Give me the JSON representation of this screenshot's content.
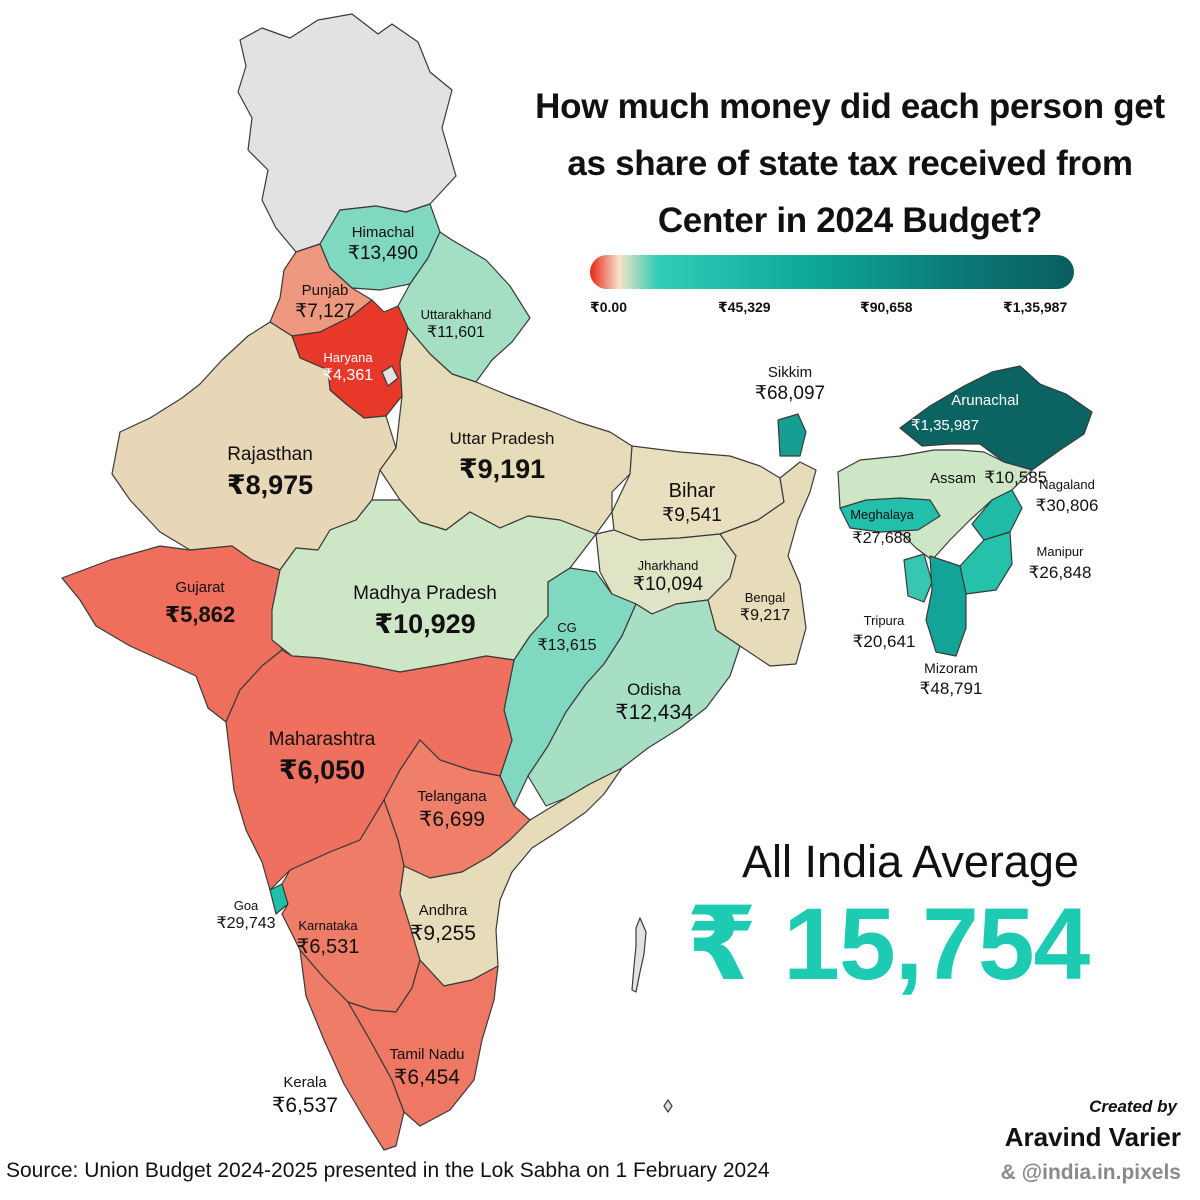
{
  "title_lines": [
    "How much money did each person get",
    "as share of state tax received from",
    "Center in 2024 Budget?"
  ],
  "legend": {
    "ticks": [
      "₹0.00",
      "₹45,329",
      "₹90,658",
      "₹1,35,987"
    ],
    "color_low": "#e8241c",
    "color_mid": "#32cdb7",
    "color_high": "#0a5d5d"
  },
  "states": {
    "himachal": {
      "name": "Himachal",
      "value": "₹13,490",
      "color": "#7fd8bf"
    },
    "punjab": {
      "name": "Punjab",
      "value": "₹7,127",
      "color": "#ee9880"
    },
    "haryana": {
      "name": "Haryana",
      "value": "₹4,361",
      "color": "#e8382a"
    },
    "uttarakhand": {
      "name": "Uttarakhand",
      "value": "₹11,601",
      "color": "#a5dfc3"
    },
    "rajasthan": {
      "name": "Rajasthan",
      "value": "₹8,975",
      "color": "#e7d7b6"
    },
    "uttar_pradesh": {
      "name": "Uttar Pradesh",
      "value": "₹9,191",
      "color": "#e7dcb9"
    },
    "bihar": {
      "name": "Bihar",
      "value": "₹9,541",
      "color": "#e7dfbe"
    },
    "gujarat": {
      "name": "Gujarat",
      "value": "₹5,862",
      "color": "#ef6e5c"
    },
    "madhya_pradesh": {
      "name": "Madhya Pradesh",
      "value": "₹10,929",
      "color": "#cde6c6"
    },
    "jharkhand": {
      "name": "Jharkhand",
      "value": "₹10,094",
      "color": "#e1e4c4"
    },
    "bengal": {
      "name": "Bengal",
      "value": "₹9,217",
      "color": "#e7dcb9"
    },
    "cg": {
      "name": "CG",
      "value": "₹13,615",
      "color": "#7fd8bf"
    },
    "odisha": {
      "name": "Odisha",
      "value": "₹12,434",
      "color": "#a7dfc4"
    },
    "maharashtra": {
      "name": "Maharashtra",
      "value": "₹6,050",
      "color": "#ef705e"
    },
    "telangana": {
      "name": "Telangana",
      "value": "₹6,699",
      "color": "#ef7f68"
    },
    "goa": {
      "name": "Goa",
      "value": "₹29,743",
      "color": "#20bfa9"
    },
    "karnataka": {
      "name": "Karnataka",
      "value": "₹6,531",
      "color": "#ef7c66"
    },
    "andhra": {
      "name": "Andhra",
      "value": "₹9,255",
      "color": "#e7dcb9"
    },
    "kerala": {
      "name": "Kerala",
      "value": "₹6,537",
      "color": "#ef7c66"
    },
    "tamil_nadu": {
      "name": "Tamil Nadu",
      "value": "₹6,454",
      "color": "#ef7864"
    },
    "sikkim": {
      "name": "Sikkim",
      "value": "₹68,097",
      "color": "#169e93"
    },
    "arunachal": {
      "name": "Arunachal",
      "value": "₹1,35,987",
      "color": "#0b6362"
    },
    "assam": {
      "name": "Assam",
      "value": "₹10,585",
      "color": "#cde6c6"
    },
    "meghalaya": {
      "name": "Meghalaya",
      "value": "₹27,688",
      "color": "#22bfaa"
    },
    "nagaland": {
      "name": "Nagaland",
      "value": "₹30,806",
      "color": "#1fbba7"
    },
    "manipur": {
      "name": "Manipur",
      "value": "₹26,848",
      "color": "#25c1ab"
    },
    "tripura": {
      "name": "Tripura",
      "value": "₹20,641",
      "color": "#38c6b0"
    },
    "mizoram": {
      "name": "Mizoram",
      "value": "₹48,791",
      "color": "#14a497"
    }
  },
  "no_data_color": "#e2e2e2",
  "average": {
    "label": "All India Average",
    "value": "₹ 15,754",
    "color": "#1ccbb1"
  },
  "source": "Source: Union Budget 2024-2025 presented in the Lok Sabha on 1 February 2024",
  "credit": {
    "line1": "Created by",
    "line2": "Aravind Varier",
    "line3": "& @india.in.pixels"
  }
}
